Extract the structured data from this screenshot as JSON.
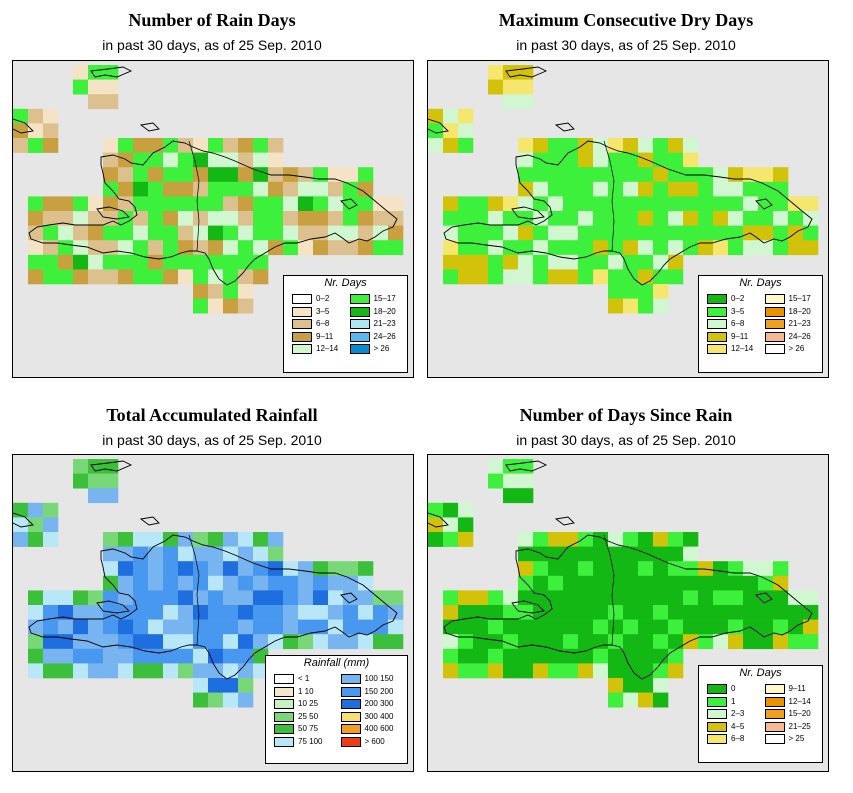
{
  "panels": [
    {
      "id": "rain-days",
      "title": "Number of Rain Days",
      "subtitle": "in past 30 days, as of  25 Sep. 2010",
      "legend": {
        "title": "Nr. Days",
        "items": [
          {
            "label": "0–2",
            "color": "#ffffff"
          },
          {
            "label": "3–5",
            "color": "#f5e3c6"
          },
          {
            "label": "6–8",
            "color": "#dcc18e"
          },
          {
            "label": "9–11",
            "color": "#c8a040"
          },
          {
            "label": "12–14",
            "color": "#d0f7d0"
          },
          {
            "label": "15–17",
            "color": "#3cf03c"
          },
          {
            "label": "18–20",
            "color": "#14b814"
          },
          {
            "label": "21–23",
            "color": "#b0e6f0"
          },
          {
            "label": "24–26",
            "color": "#5ab8f0"
          },
          {
            "label": "> 26",
            "color": "#0a8ad0"
          }
        ]
      }
    },
    {
      "id": "max-dry-days",
      "title": "Maximum Consecutive Dry Days",
      "subtitle": "in past 30 days, as of  25 Sep. 2010",
      "legend": {
        "title": "Nr. Days",
        "items": [
          {
            "label": "0–2",
            "color": "#14b814"
          },
          {
            "label": "3–5",
            "color": "#3cf03c"
          },
          {
            "label": "6–8",
            "color": "#d0f7d0"
          },
          {
            "label": "9–11",
            "color": "#d2c20a"
          },
          {
            "label": "12–14",
            "color": "#f5e66e"
          },
          {
            "label": "15–17",
            "color": "#fff8c8"
          },
          {
            "label": "18–20",
            "color": "#e89400"
          },
          {
            "label": "21–23",
            "color": "#f0a020"
          },
          {
            "label": "24–26",
            "color": "#f8b890"
          },
          {
            "label": "> 26",
            "color": "#ffffff"
          }
        ]
      }
    },
    {
      "id": "total-rainfall",
      "title": "Total Accumulated Rainfall",
      "subtitle": "in past 30 days, as of  25 Sep. 2010",
      "legend": {
        "title": "Rainfall (mm)",
        "items": [
          {
            "label": "< 1",
            "color": "#ffffff"
          },
          {
            "label": "1    10",
            "color": "#f5e8c8"
          },
          {
            "label": "10    25",
            "color": "#c8f0c0"
          },
          {
            "label": "25    50",
            "color": "#78d878"
          },
          {
            "label": "50    75",
            "color": "#3cc03c"
          },
          {
            "label": "75   100",
            "color": "#b8e8f8"
          },
          {
            "label": "100   150",
            "color": "#78b4f0"
          },
          {
            "label": "150   200",
            "color": "#4898f0"
          },
          {
            "label": "200   300",
            "color": "#1e6ee0"
          },
          {
            "label": "300   400",
            "color": "#f8e070"
          },
          {
            "label": "400   600",
            "color": "#f0a020"
          },
          {
            "label": "> 600",
            "color": "#f03c14"
          }
        ]
      }
    },
    {
      "id": "days-since-rain",
      "title": "Number of Days Since Rain",
      "subtitle": "in past 30 days, as of  25 Sep. 2010",
      "legend": {
        "title": "Nr. Days",
        "items": [
          {
            "label": "0",
            "color": "#14b814"
          },
          {
            "label": "1",
            "color": "#3cf03c"
          },
          {
            "label": "2–3",
            "color": "#d0f7d0"
          },
          {
            "label": "4–5",
            "color": "#d2c20a"
          },
          {
            "label": "6–8",
            "color": "#f5e66e"
          },
          {
            "label": "9–11",
            "color": "#fff8c8"
          },
          {
            "label": "12–14",
            "color": "#e89400"
          },
          {
            "label": "15–20",
            "color": "#f0a020"
          },
          {
            "label": "21–25",
            "color": "#f8b890"
          },
          {
            "label": "> 25",
            "color": "#ffffff"
          }
        ]
      }
    }
  ]
}
